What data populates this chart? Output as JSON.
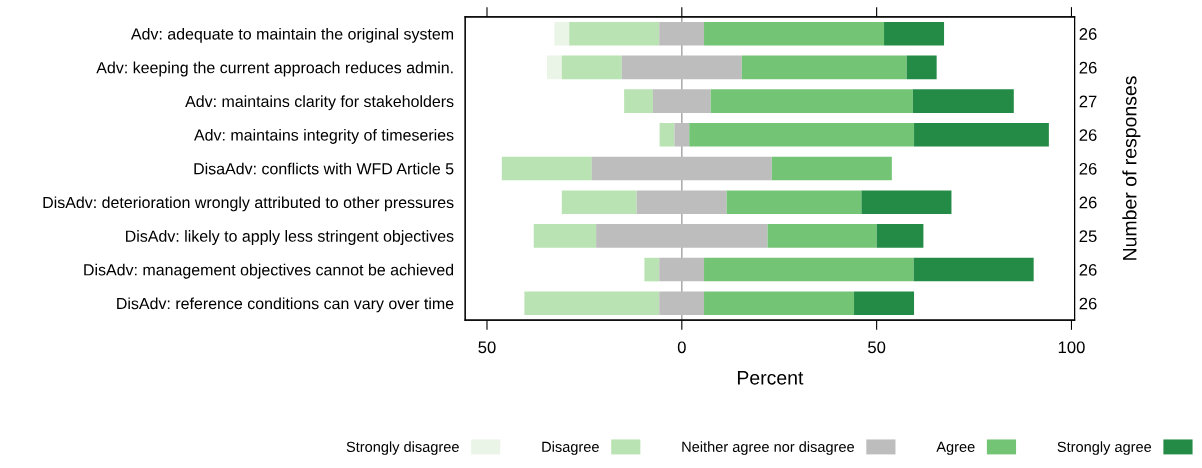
{
  "chart_data": {
    "type": "bar",
    "orientation": "horizontal",
    "xlabel": "Percent",
    "y2label": "Number of responses",
    "categories": [
      "Adv: adequate to maintain the original system",
      "Adv: keeping the current approach reduces admin.",
      "Adv: maintains clarity for stakeholders",
      "Adv: maintains integrity of timeseries",
      "DisaAdv: conflicts with WFD Article 5",
      "DisAdv: deterioration wrongly attributed to other pressures",
      "DisAdv: likely to apply less stringent objectives",
      "DisAdv: management objectives cannot be achieved",
      "DisAdv: reference conditions can vary over time"
    ],
    "y2_categories": [
      "26",
      "26",
      "27",
      "26",
      "26",
      "26",
      "25",
      "26",
      "26"
    ],
    "series": [
      {
        "name": "Strongly disagree",
        "color": "#eaf5e7",
        "base": [
          -32.7,
          -34.6,
          null,
          null,
          null,
          null,
          null,
          null,
          null
        ],
        "values": [
          3.8,
          3.8,
          null,
          null,
          null,
          null,
          null,
          null,
          null
        ]
      },
      {
        "name": "Disagree",
        "color": "#b9e3b2",
        "base": [
          -28.9,
          -30.8,
          -14.8,
          -5.7,
          -46.2,
          -30.8,
          -38,
          -9.6,
          -40.4
        ],
        "values": [
          23.1,
          15.4,
          7.4,
          3.8,
          23.1,
          19.2,
          16,
          3.8,
          34.6
        ]
      },
      {
        "name": "Neither agree nor disagree",
        "color": "#bdbdbd",
        "base": [
          -5.8,
          -15.4,
          -7.4,
          -1.9,
          -23.1,
          -11.6,
          -22,
          -5.8,
          -5.8
        ],
        "values": [
          11.5,
          30.8,
          14.8,
          3.8,
          46.2,
          23.1,
          44,
          11.5,
          11.5
        ]
      },
      {
        "name": "Agree",
        "color": "#74c476",
        "base": [
          5.7,
          15.4,
          7.4,
          1.9,
          23.1,
          11.5,
          22,
          5.7,
          5.7
        ],
        "values": [
          46.2,
          42.3,
          51.9,
          57.7,
          30.8,
          34.6,
          28,
          53.8,
          38.5
        ]
      },
      {
        "name": "Strongly agree",
        "color": "#238b45",
        "base": [
          51.9,
          57.7,
          59.3,
          59.6,
          null,
          46.1,
          50,
          59.5,
          44.2
        ],
        "values": [
          15.4,
          7.7,
          25.9,
          34.6,
          null,
          23.1,
          12,
          30.8,
          15.4
        ]
      }
    ],
    "xlim": [
      -55.6,
      100.8
    ],
    "xticks": [
      {
        "value": -50,
        "label": "50"
      },
      0,
      50,
      100
    ],
    "ref_lines": [
      {
        "axis": "x",
        "value": 0,
        "color": "#a0a0a0"
      }
    ],
    "grid": false,
    "legend": "bottom"
  }
}
